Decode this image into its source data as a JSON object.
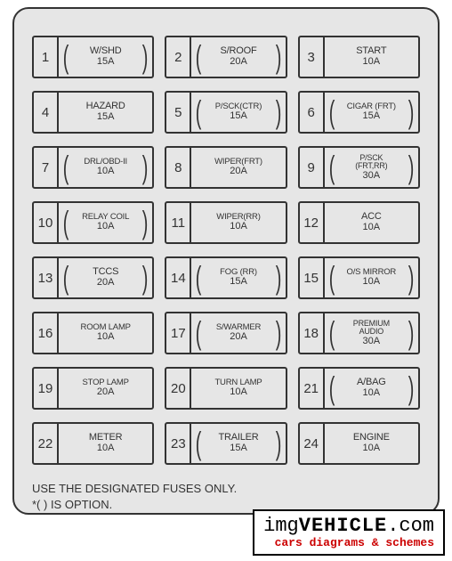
{
  "panel": {
    "background": "#e6e6e6",
    "border_color": "#333333",
    "border_radius": 18
  },
  "fuses": [
    {
      "num": "1",
      "label": "W/SHD",
      "amp": "15A",
      "option": true,
      "size": ""
    },
    {
      "num": "2",
      "label": "S/ROOF",
      "amp": "20A",
      "option": true,
      "size": ""
    },
    {
      "num": "3",
      "label": "START",
      "amp": "10A",
      "option": false,
      "size": ""
    },
    {
      "num": "4",
      "label": "HAZARD",
      "amp": "15A",
      "option": false,
      "size": ""
    },
    {
      "num": "5",
      "label": "P/SCK(CTR)",
      "amp": "15A",
      "option": true,
      "size": "small"
    },
    {
      "num": "6",
      "label": "CIGAR (FRT)",
      "amp": "15A",
      "option": true,
      "size": "small"
    },
    {
      "num": "7",
      "label": "DRL/OBD-II",
      "amp": "10A",
      "option": true,
      "size": "small"
    },
    {
      "num": "8",
      "label": "WIPER(FRT)",
      "amp": "20A",
      "option": false,
      "size": "small"
    },
    {
      "num": "9",
      "label": "P/SCK (FRT,RR)",
      "amp": "30A",
      "option": true,
      "size": "xsmall",
      "two": true
    },
    {
      "num": "10",
      "label": "RELAY COIL",
      "amp": "10A",
      "option": true,
      "size": "small"
    },
    {
      "num": "11",
      "label": "WIPER(RR)",
      "amp": "10A",
      "option": false,
      "size": "small"
    },
    {
      "num": "12",
      "label": "ACC",
      "amp": "10A",
      "option": false,
      "size": ""
    },
    {
      "num": "13",
      "label": "TCCS",
      "amp": "20A",
      "option": true,
      "size": ""
    },
    {
      "num": "14",
      "label": "FOG (RR)",
      "amp": "15A",
      "option": true,
      "size": "small"
    },
    {
      "num": "15",
      "label": "O/S MIRROR",
      "amp": "10A",
      "option": true,
      "size": "small"
    },
    {
      "num": "16",
      "label": "ROOM LAMP",
      "amp": "10A",
      "option": false,
      "size": "small"
    },
    {
      "num": "17",
      "label": "S/WARMER",
      "amp": "20A",
      "option": true,
      "size": "small"
    },
    {
      "num": "18",
      "label": "PREMIUM AUDIO",
      "amp": "30A",
      "option": true,
      "size": "xsmall",
      "two": true
    },
    {
      "num": "19",
      "label": "STOP LAMP",
      "amp": "20A",
      "option": false,
      "size": "small"
    },
    {
      "num": "20",
      "label": "TURN  LAMP",
      "amp": "10A",
      "option": false,
      "size": "small"
    },
    {
      "num": "21",
      "label": "A/BAG",
      "amp": "10A",
      "option": true,
      "size": ""
    },
    {
      "num": "22",
      "label": "METER",
      "amp": "10A",
      "option": false,
      "size": ""
    },
    {
      "num": "23",
      "label": "TRAILER",
      "amp": "15A",
      "option": true,
      "size": ""
    },
    {
      "num": "24",
      "label": "ENGINE",
      "amp": "10A",
      "option": false,
      "size": ""
    }
  ],
  "footer": {
    "line1": "USE THE DESIGNATED FUSES ONLY.",
    "line2": "*(   ) IS OPTION."
  },
  "watermark": {
    "part1": "img",
    "part2": "VEHICLE",
    "part3": ".com",
    "sub": "cars diagrams & schemes"
  }
}
